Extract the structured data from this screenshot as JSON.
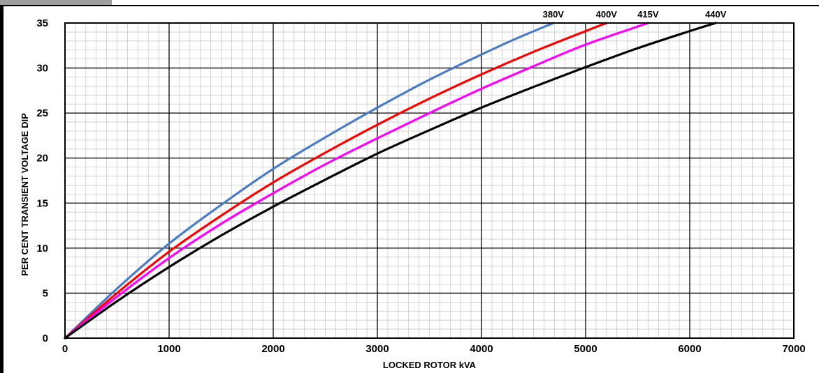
{
  "chart_data": {
    "type": "line",
    "xlabel": "LOCKED ROTOR kVA",
    "ylabel": "PER CENT TRANSIENT VOLTAGE DIP",
    "xlim": [
      0,
      7000
    ],
    "ylim": [
      0,
      35
    ],
    "x_ticks": [
      0,
      1000,
      2000,
      3000,
      4000,
      5000,
      6000,
      7000
    ],
    "y_ticks": [
      0,
      5,
      10,
      15,
      20,
      25,
      30,
      35
    ],
    "grid": true,
    "series": [
      {
        "name": "380V",
        "color": "#4a7cc4",
        "x": [
          0,
          500,
          1000,
          1500,
          2000,
          2500,
          3000,
          3500,
          4000,
          4300,
          4690
        ],
        "y": [
          0,
          5.5,
          10.5,
          14.8,
          18.8,
          22.3,
          25.6,
          28.7,
          31.5,
          33.1,
          35
        ]
      },
      {
        "name": "400V",
        "color": "#ff0000",
        "x": [
          0,
          500,
          1000,
          1500,
          2000,
          2500,
          3000,
          3500,
          4000,
          4500,
          5000,
          5200
        ],
        "y": [
          0,
          5.0,
          9.6,
          13.6,
          17.3,
          20.6,
          23.7,
          26.6,
          29.3,
          31.8,
          34.1,
          35
        ]
      },
      {
        "name": "415V",
        "color": "#ff00ff",
        "x": [
          0,
          500,
          1000,
          1500,
          2000,
          2500,
          3000,
          3500,
          4000,
          4500,
          5000,
          5600
        ],
        "y": [
          0,
          4.6,
          8.9,
          12.7,
          16.1,
          19.3,
          22.2,
          25.0,
          27.7,
          30.2,
          32.6,
          35
        ]
      },
      {
        "name": "440V",
        "color": "#000000",
        "x": [
          0,
          500,
          1000,
          1500,
          2000,
          2500,
          3000,
          3500,
          4000,
          4500,
          5000,
          5500,
          6000,
          6250
        ],
        "y": [
          0,
          4.1,
          7.9,
          11.4,
          14.6,
          17.6,
          20.5,
          23.1,
          25.6,
          27.9,
          30.1,
          32.2,
          34.1,
          35
        ]
      }
    ]
  }
}
